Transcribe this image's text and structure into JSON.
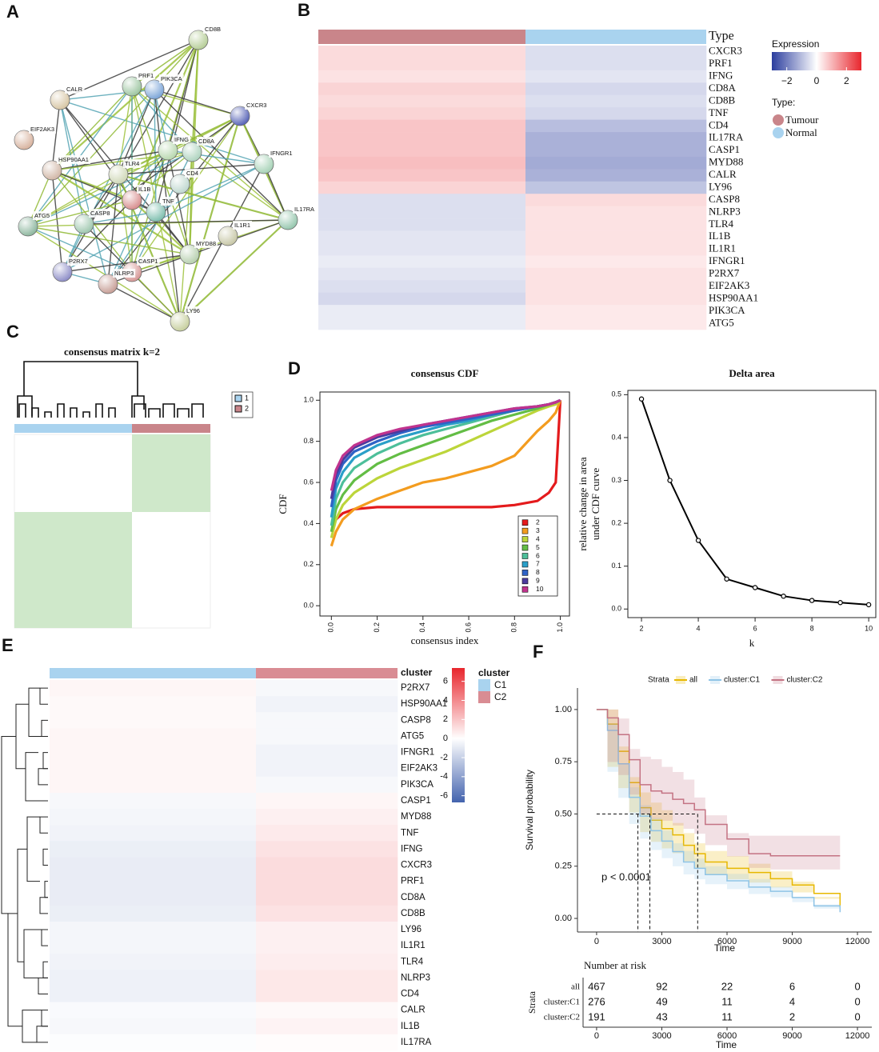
{
  "chart_data": [
    {
      "panel": "A",
      "type": "network",
      "nodes": [
        "CD8B",
        "CALR",
        "PRF1",
        "PIK3CA",
        "CXCR3",
        "EIF2AK3",
        "HSP90AA1",
        "IFNG",
        "CD8A",
        "IFNGR1",
        "TLR4",
        "CD4",
        "IL1B",
        "TNF",
        "ATG5",
        "CASP8",
        "IL17RA",
        "IL1R1",
        "MYD88",
        "P2RX7",
        "CASP1",
        "NLRP3",
        "LY96"
      ]
    },
    {
      "panel": "B",
      "type": "heatmap",
      "annotation_label": "Type",
      "groups": [
        "Tumour",
        "Normal"
      ],
      "group_colors": [
        "#c9858a",
        "#a9d3ef"
      ],
      "genes": [
        "CXCR3",
        "PRF1",
        "IFNG",
        "CD8A",
        "CD8B",
        "TNF",
        "CD4",
        "IL17RA",
        "CASP1",
        "MYD88",
        "CALR",
        "LY96",
        "CASP8",
        "NLRP3",
        "TLR4",
        "IL1B",
        "IL1R1",
        "IFNGR1",
        "P2RX7",
        "EIF2AK3",
        "HSP90AA1",
        "PIK3CA",
        "ATG5"
      ],
      "values": [
        [
          0.5,
          -0.5
        ],
        [
          0.5,
          -0.5
        ],
        [
          0.4,
          -0.4
        ],
        [
          0.6,
          -0.6
        ],
        [
          0.5,
          -0.5
        ],
        [
          0.6,
          -0.6
        ],
        [
          0.8,
          -1
        ],
        [
          0.8,
          -1.2
        ],
        [
          0.8,
          -1.2
        ],
        [
          0.9,
          -1.3
        ],
        [
          0.8,
          -1.2
        ],
        [
          0.6,
          -0.9
        ],
        [
          -0.5,
          0.5
        ],
        [
          -0.5,
          0.4
        ],
        [
          -0.5,
          0.4
        ],
        [
          -0.4,
          0.4
        ],
        [
          -0.4,
          0.4
        ],
        [
          -0.3,
          0.3
        ],
        [
          -0.4,
          0.4
        ],
        [
          -0.5,
          0.4
        ],
        [
          -0.6,
          0.4
        ],
        [
          -0.3,
          0.3
        ],
        [
          -0.3,
          0.3
        ]
      ],
      "legend_title": "Expression",
      "legend_group_title": "Type:",
      "colorbar": "horizontal",
      "clim": [
        -3,
        3
      ],
      "cticks": [
        {
          "value": -2,
          "label": "−2"
        },
        0,
        2
      ],
      "colors": [
        "#2b3d9e",
        "#ffffff",
        "#e8262d"
      ]
    },
    {
      "panel": "C",
      "type": "consensus",
      "title": "consensus matrix k=2",
      "clusters": [
        "1",
        "2"
      ],
      "cluster_colors": [
        "#a9d3ef",
        "#c9858a"
      ],
      "fill": "#cfe8ca"
    },
    {
      "panel": "D",
      "type": "line",
      "title": "consensus CDF",
      "xlabel": "consensus index",
      "ylabel": "CDF",
      "markers": false,
      "legend": "lower right",
      "x": [
        0,
        0.02,
        0.05,
        0.1,
        0.2,
        0.3,
        0.4,
        0.5,
        0.6,
        0.7,
        0.8,
        0.9,
        0.95,
        0.98,
        1.0
      ],
      "series": [
        {
          "name": "2",
          "color": "#e41a1c",
          "values": [
            0.36,
            0.42,
            0.45,
            0.47,
            0.48,
            0.48,
            0.48,
            0.48,
            0.48,
            0.48,
            0.49,
            0.51,
            0.55,
            0.6,
            1.0
          ]
        },
        {
          "name": "3",
          "color": "#f39c1f",
          "values": [
            0.29,
            0.36,
            0.42,
            0.47,
            0.52,
            0.56,
            0.6,
            0.62,
            0.65,
            0.68,
            0.73,
            0.85,
            0.9,
            0.94,
            1.0
          ]
        },
        {
          "name": "4",
          "color": "#bcd53a",
          "values": [
            0.33,
            0.42,
            0.49,
            0.55,
            0.62,
            0.67,
            0.71,
            0.75,
            0.8,
            0.85,
            0.9,
            0.95,
            0.97,
            0.98,
            1.0
          ]
        },
        {
          "name": "5",
          "color": "#63bd45",
          "values": [
            0.36,
            0.47,
            0.54,
            0.61,
            0.69,
            0.74,
            0.78,
            0.82,
            0.86,
            0.9,
            0.93,
            0.96,
            0.98,
            0.99,
            1.0
          ]
        },
        {
          "name": "6",
          "color": "#4dbf9a",
          "values": [
            0.39,
            0.52,
            0.6,
            0.67,
            0.74,
            0.79,
            0.83,
            0.86,
            0.89,
            0.92,
            0.95,
            0.97,
            0.98,
            0.99,
            1.0
          ]
        },
        {
          "name": "7",
          "color": "#2a9fc8",
          "values": [
            0.43,
            0.57,
            0.65,
            0.72,
            0.78,
            0.82,
            0.85,
            0.88,
            0.9,
            0.93,
            0.95,
            0.97,
            0.98,
            0.99,
            1.0
          ]
        },
        {
          "name": "8",
          "color": "#2f63c6",
          "values": [
            0.48,
            0.61,
            0.69,
            0.75,
            0.8,
            0.84,
            0.87,
            0.89,
            0.91,
            0.93,
            0.95,
            0.97,
            0.98,
            0.99,
            1.0
          ]
        },
        {
          "name": "9",
          "color": "#4b3b9e",
          "values": [
            0.52,
            0.64,
            0.71,
            0.77,
            0.82,
            0.85,
            0.88,
            0.9,
            0.92,
            0.94,
            0.96,
            0.97,
            0.98,
            0.99,
            1.0
          ]
        },
        {
          "name": "10",
          "color": "#c0338e",
          "values": [
            0.56,
            0.66,
            0.73,
            0.78,
            0.83,
            0.86,
            0.88,
            0.9,
            0.92,
            0.94,
            0.96,
            0.97,
            0.98,
            0.99,
            1.0
          ]
        }
      ],
      "xlim": [
        -0.05,
        1.04
      ],
      "ylim": [
        -0.05,
        1.04
      ],
      "xticks": [
        {
          "value": 0,
          "label": "0.0"
        },
        0.2,
        0.4,
        0.6,
        0.8,
        {
          "value": 1,
          "label": "1.0"
        }
      ],
      "yticks": [
        {
          "value": 0,
          "label": "0.0"
        },
        0.2,
        0.4,
        0.6,
        0.8,
        {
          "value": 1,
          "label": "1.0"
        }
      ],
      "xtick_rotation": -90
    },
    {
      "type": "line",
      "title": "Delta area",
      "xlabel": "k",
      "ylabel": [
        "relative change in area",
        "under CDF curve"
      ],
      "markers": true,
      "x": [
        2,
        3,
        4,
        5,
        6,
        7,
        8,
        9,
        10
      ],
      "series": [
        {
          "color": "#000000",
          "values": [
            0.49,
            0.3,
            0.16,
            0.07,
            0.05,
            0.03,
            0.02,
            0.015,
            0.01
          ]
        }
      ],
      "xlim": [
        1.52,
        10.25
      ],
      "ylim": [
        -0.02,
        0.51
      ],
      "xticks": [
        2,
        4,
        6,
        8,
        10
      ],
      "yticks": [
        {
          "value": 0,
          "label": "0.0"
        },
        0.1,
        0.2,
        0.3,
        0.4,
        0.5
      ],
      "xtick_rotation": 0
    },
    {
      "panel": "E",
      "type": "heatmap",
      "annotation_label": "cluster",
      "groups": [
        "C1",
        "C2"
      ],
      "group_colors": [
        "#a9d3ef",
        "#d98c93"
      ],
      "genes": [
        "P2RX7",
        "HSP90AA1",
        "CASP8",
        "ATG5",
        "IFNGR1",
        "EIF2AK3",
        "PIK3CA",
        "CASP1",
        "MYD88",
        "TNF",
        "IFNG",
        "CXCR3",
        "PRF1",
        "CD8A",
        "CD8B",
        "LY96",
        "IL1R1",
        "TLR4",
        "NLRP3",
        "CD4",
        "CALR",
        "IL1B",
        "IL17RA"
      ],
      "values": [
        [
          0.3,
          -0.3
        ],
        [
          0.2,
          -0.5
        ],
        [
          0.2,
          -0.3
        ],
        [
          0.3,
          -0.3
        ],
        [
          0.3,
          -0.5
        ],
        [
          0.3,
          -0.5
        ],
        [
          0.3,
          -0.3
        ],
        [
          -0.3,
          0.3
        ],
        [
          -0.4,
          0.5
        ],
        [
          -0.5,
          0.7
        ],
        [
          -0.7,
          1
        ],
        [
          -0.8,
          1.2
        ],
        [
          -0.8,
          1.2
        ],
        [
          -0.8,
          1.2
        ],
        [
          -0.7,
          1
        ],
        [
          -0.4,
          0.5
        ],
        [
          -0.4,
          0.5
        ],
        [
          -0.5,
          0.6
        ],
        [
          -0.6,
          0.8
        ],
        [
          -0.6,
          0.8
        ],
        [
          -0.2,
          0.2
        ],
        [
          -0.3,
          0.4
        ],
        [
          -0.1,
          0.1
        ]
      ],
      "legend_group_title": "cluster",
      "colorbar": "vertical",
      "clim": [
        -6.7,
        7.4
      ],
      "cticks": [
        6,
        4,
        2,
        0,
        -2,
        -4,
        -6
      ],
      "colors": [
        "#2f53a5",
        "#ffffff",
        "#e8262d"
      ]
    },
    {
      "panel": "F",
      "type": "survival",
      "legend_title": "Strata",
      "xlabel": "Time",
      "ylabel": "Survival probability",
      "annotation": "p < 0.0001",
      "x": [
        0,
        500,
        1000,
        1500,
        2000,
        2500,
        3000,
        3500,
        4000,
        4500,
        5000,
        6000,
        7000,
        8000,
        9000,
        10000,
        11200
      ],
      "series": [
        {
          "name": "all",
          "color": "#e7b800",
          "values": [
            1,
            0.93,
            0.8,
            0.65,
            0.53,
            0.47,
            0.43,
            0.4,
            0.35,
            0.31,
            0.27,
            0.24,
            0.22,
            0.19,
            0.16,
            0.12,
            0.06
          ]
        },
        {
          "name": "cluster:C1",
          "color": "#8fc4e6",
          "values": [
            1,
            0.9,
            0.74,
            0.58,
            0.49,
            0.42,
            0.37,
            0.32,
            0.27,
            0.24,
            0.21,
            0.18,
            0.15,
            0.13,
            0.1,
            0.06,
            0.03
          ]
        },
        {
          "name": "cluster:C2",
          "color": "#c47383",
          "values": [
            1,
            0.96,
            0.88,
            0.76,
            0.64,
            0.61,
            0.6,
            0.57,
            0.55,
            0.52,
            0.45,
            0.38,
            0.31,
            0.3,
            0.3,
            0.3,
            0.3
          ]
        }
      ],
      "median_level": 0.5,
      "medians": [
        1900,
        2450,
        4650
      ],
      "xlim": [
        -880,
        12660
      ],
      "ylim": [
        -0.065,
        1.103
      ],
      "xticks": [
        0,
        3000,
        6000,
        9000,
        12000
      ],
      "yticks": [
        {
          "value": 0,
          "label": "0.00"
        },
        {
          "value": 0.25,
          "label": "0.25"
        },
        {
          "value": 0.5,
          "label": "0.50"
        },
        {
          "value": 0.75,
          "label": "0.75"
        },
        {
          "value": 1,
          "label": "1.00"
        }
      ],
      "risk_table": {
        "title": "Number at risk",
        "ylabel": "Strata",
        "xlabel": "Time",
        "counts": [
          [
            467,
            92,
            22,
            6,
            0
          ],
          [
            276,
            49,
            11,
            4,
            0
          ],
          [
            191,
            43,
            11,
            2,
            0
          ]
        ]
      }
    }
  ]
}
